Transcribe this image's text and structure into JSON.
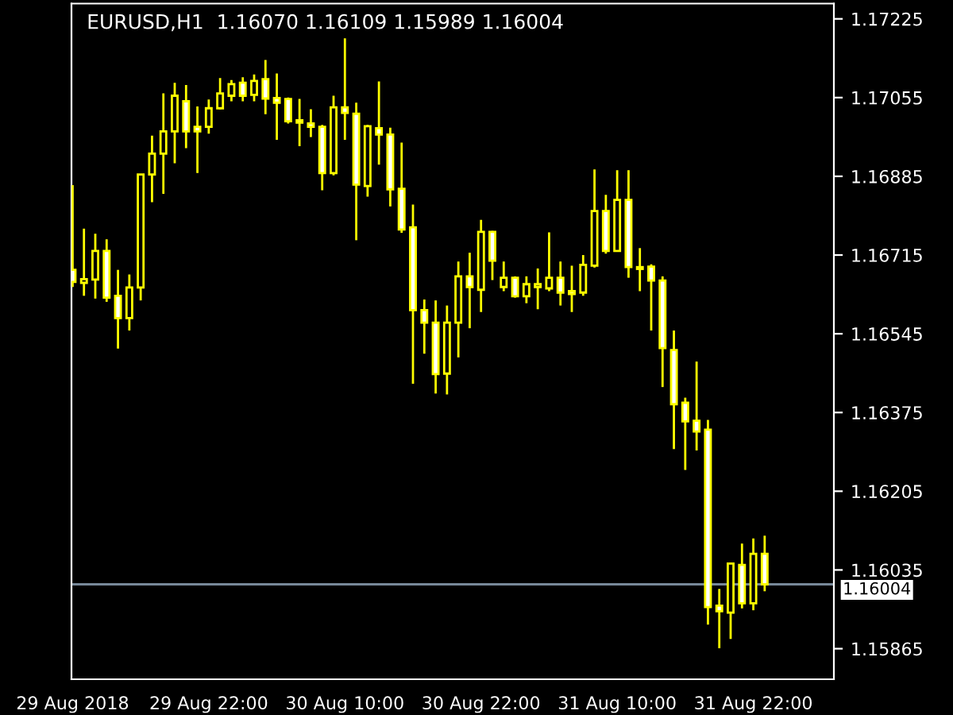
{
  "chart_data": {
    "type": "candlestick",
    "title": "EURUSD,H1  1.16070 1.16109 1.15989 1.16004",
    "x": [
      "2018-08-29T10:00",
      "2018-08-29T11:00",
      "2018-08-29T12:00",
      "2018-08-29T13:00",
      "2018-08-29T14:00",
      "2018-08-29T15:00",
      "2018-08-29T16:00",
      "2018-08-29T17:00",
      "2018-08-29T18:00",
      "2018-08-29T19:00",
      "2018-08-29T20:00",
      "2018-08-29T21:00",
      "2018-08-29T22:00",
      "2018-08-29T23:00",
      "2018-08-30T00:00",
      "2018-08-30T01:00",
      "2018-08-30T02:00",
      "2018-08-30T03:00",
      "2018-08-30T04:00",
      "2018-08-30T05:00",
      "2018-08-30T06:00",
      "2018-08-30T07:00",
      "2018-08-30T08:00",
      "2018-08-30T09:00",
      "2018-08-30T10:00",
      "2018-08-30T11:00",
      "2018-08-30T12:00",
      "2018-08-30T13:00",
      "2018-08-30T14:00",
      "2018-08-30T15:00",
      "2018-08-30T16:00",
      "2018-08-30T17:00",
      "2018-08-30T18:00",
      "2018-08-30T19:00",
      "2018-08-30T20:00",
      "2018-08-30T21:00",
      "2018-08-30T22:00",
      "2018-08-30T23:00",
      "2018-08-31T00:00",
      "2018-08-31T01:00",
      "2018-08-31T02:00",
      "2018-08-31T03:00",
      "2018-08-31T04:00",
      "2018-08-31T05:00",
      "2018-08-31T06:00",
      "2018-08-31T07:00",
      "2018-08-31T08:00",
      "2018-08-31T09:00",
      "2018-08-31T10:00",
      "2018-08-31T11:00",
      "2018-08-31T12:00",
      "2018-08-31T13:00",
      "2018-08-31T14:00",
      "2018-08-31T15:00",
      "2018-08-31T16:00",
      "2018-08-31T17:00",
      "2018-08-31T18:00",
      "2018-08-31T19:00",
      "2018-08-31T20:00",
      "2018-08-31T21:00",
      "2018-08-31T22:00",
      "2018-08-31T23:00"
    ],
    "ohlc": [
      [
        1.16683,
        1.16866,
        1.16646,
        1.16657
      ],
      [
        1.16655,
        1.16772,
        1.16627,
        1.16663
      ],
      [
        1.16662,
        1.16761,
        1.16621,
        1.16724
      ],
      [
        1.16724,
        1.16749,
        1.16614,
        1.16623
      ],
      [
        1.16627,
        1.16683,
        1.16513,
        1.16579
      ],
      [
        1.16579,
        1.16673,
        1.16552,
        1.16645
      ],
      [
        1.16645,
        1.16889,
        1.16617,
        1.16889
      ],
      [
        1.16889,
        1.16973,
        1.16829,
        1.16934
      ],
      [
        1.16934,
        1.17064,
        1.16847,
        1.16982
      ],
      [
        1.16982,
        1.17087,
        1.16913,
        1.17059
      ],
      [
        1.17047,
        1.17082,
        1.16946,
        1.16982
      ],
      [
        1.16992,
        1.17036,
        1.16892,
        1.16982
      ],
      [
        1.16992,
        1.17051,
        1.16977,
        1.17032
      ],
      [
        1.17032,
        1.17097,
        1.1703,
        1.17064
      ],
      [
        1.17059,
        1.17093,
        1.17047,
        1.17084
      ],
      [
        1.17087,
        1.17099,
        1.17047,
        1.17059
      ],
      [
        1.17061,
        1.17105,
        1.17047,
        1.17091
      ],
      [
        1.17095,
        1.17136,
        1.17019,
        1.17053
      ],
      [
        1.17054,
        1.17107,
        1.16964,
        1.17044
      ],
      [
        1.17052,
        1.17055,
        1.16999,
        1.17004
      ],
      [
        1.17006,
        1.17052,
        1.1695,
        1.17001
      ],
      [
        1.16999,
        1.1703,
        1.1697,
        1.16992
      ],
      [
        1.16992,
        1.16996,
        1.16855,
        1.16892
      ],
      [
        1.16892,
        1.17059,
        1.16887,
        1.17034
      ],
      [
        1.17034,
        1.17183,
        1.16964,
        1.17022
      ],
      [
        1.1702,
        1.17044,
        1.16747,
        1.16867
      ],
      [
        1.16864,
        1.16996,
        1.16841,
        1.16993
      ],
      [
        1.16989,
        1.1709,
        1.1691,
        1.16975
      ],
      [
        1.16975,
        1.1699,
        1.1682,
        1.16857
      ],
      [
        1.16858,
        1.16958,
        1.16763,
        1.1677
      ],
      [
        1.16775,
        1.16824,
        1.16437,
        1.16596
      ],
      [
        1.16596,
        1.16619,
        1.16502,
        1.16569
      ],
      [
        1.16569,
        1.16617,
        1.16416,
        1.16458
      ],
      [
        1.16459,
        1.16606,
        1.16414,
        1.16569
      ],
      [
        1.16569,
        1.16701,
        1.16494,
        1.16669
      ],
      [
        1.16669,
        1.1672,
        1.16557,
        1.16646
      ],
      [
        1.1664,
        1.16791,
        1.16592,
        1.16765
      ],
      [
        1.16765,
        1.16767,
        1.16661,
        1.16703
      ],
      [
        1.16646,
        1.16701,
        1.16637,
        1.16666
      ],
      [
        1.16666,
        1.16669,
        1.16623,
        1.16626
      ],
      [
        1.16626,
        1.16669,
        1.16611,
        1.16652
      ],
      [
        1.16646,
        1.16686,
        1.16598,
        1.16652
      ],
      [
        1.16643,
        1.16764,
        1.16637,
        1.16666
      ],
      [
        1.16666,
        1.16701,
        1.16606,
        1.16634
      ],
      [
        1.16637,
        1.16692,
        1.16592,
        1.16631
      ],
      [
        1.16634,
        1.16715,
        1.16627,
        1.16694
      ],
      [
        1.16692,
        1.169,
        1.16688,
        1.1681
      ],
      [
        1.1681,
        1.16845,
        1.16718,
        1.16724
      ],
      [
        1.16724,
        1.16898,
        1.16724,
        1.16834
      ],
      [
        1.16834,
        1.16898,
        1.16666,
        1.16689
      ],
      [
        1.16689,
        1.1673,
        1.16637,
        1.16685
      ],
      [
        1.1669,
        1.16695,
        1.16552,
        1.1666
      ],
      [
        1.1666,
        1.16669,
        1.1643,
        1.16514
      ],
      [
        1.1651,
        1.16552,
        1.16296,
        1.16393
      ],
      [
        1.16396,
        1.16407,
        1.16251,
        1.16356
      ],
      [
        1.16357,
        1.16485,
        1.16293,
        1.16334
      ],
      [
        1.16338,
        1.16359,
        1.15917,
        1.15955
      ],
      [
        1.15958,
        1.15994,
        1.15866,
        1.15946
      ],
      [
        1.15943,
        1.16049,
        1.15886,
        1.16049
      ],
      [
        1.16046,
        1.16092,
        1.15952,
        1.15963
      ],
      [
        1.15963,
        1.16103,
        1.15948,
        1.1607
      ],
      [
        1.1607,
        1.16109,
        1.15989,
        1.16004
      ]
    ],
    "xlim": [
      "2018-08-29T09:54",
      "2018-09-01T05:06"
    ],
    "xticks": [
      {
        "value": "2018-08-29T10:00",
        "label": "29 Aug 2018"
      },
      {
        "value": "2018-08-29T22:00",
        "label": "29 Aug 22:00"
      },
      {
        "value": "2018-08-30T10:00",
        "label": "30 Aug 10:00"
      },
      {
        "value": "2018-08-30T22:00",
        "label": "30 Aug 22:00"
      },
      {
        "value": "2018-08-31T10:00",
        "label": "31 Aug 10:00"
      },
      {
        "value": "2018-08-31T22:00",
        "label": "31 Aug 22:00"
      }
    ],
    "ylim": [
      1.15799,
      1.17258
    ],
    "yticks": [
      1.15865,
      1.16035,
      1.16205,
      1.16375,
      1.16545,
      1.16715,
      1.16885,
      1.17055,
      1.17225
    ],
    "ref_lines": [
      {
        "axis": "y",
        "value": 1.16004,
        "label": "1.16004",
        "color": "#778899"
      }
    ],
    "grid": false
  }
}
